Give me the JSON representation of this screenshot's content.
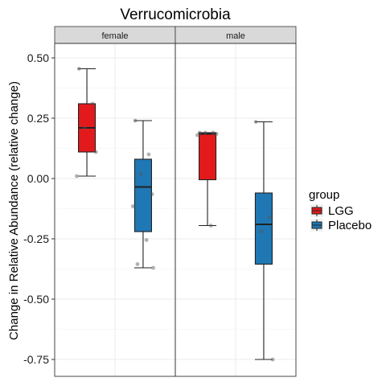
{
  "chart_data": {
    "type": "boxplot",
    "title": "Verrucomicrobia",
    "ylabel": "Change in Relative Abundance (relative change)",
    "xlabel": "",
    "ylim": [
      -0.82,
      0.56
    ],
    "yticks": [
      0.5,
      0.25,
      0.0,
      -0.25,
      -0.5,
      -0.75
    ],
    "ytick_labels": [
      "0.50",
      "0.25",
      "0.00",
      "-0.25",
      "-0.50",
      "-0.75"
    ],
    "grid": true,
    "facets": [
      "female",
      "male"
    ],
    "legend": {
      "title": "group",
      "position": "right",
      "entries": [
        {
          "label": "LGG",
          "color": "#E31A1C"
        },
        {
          "label": "Placebo",
          "color": "#1F78B4"
        }
      ]
    },
    "series": [
      {
        "facet": "female",
        "group": "LGG",
        "color": "#E31A1C",
        "stats": {
          "min": 0.01,
          "q1": 0.11,
          "median": 0.21,
          "q3": 0.31,
          "max": 0.455
        },
        "points": [
          0.455,
          0.31,
          0.21,
          0.11,
          0.01
        ]
      },
      {
        "facet": "female",
        "group": "Placebo",
        "color": "#1F78B4",
        "stats": {
          "min": -0.37,
          "q1": -0.22,
          "median": -0.035,
          "q3": 0.08,
          "max": 0.24
        },
        "points": [
          0.24,
          0.1,
          0.02,
          -0.065,
          -0.115,
          -0.255,
          -0.355,
          -0.37
        ]
      },
      {
        "facet": "male",
        "group": "LGG",
        "color": "#E31A1C",
        "stats": {
          "min": -0.195,
          "q1": -0.005,
          "median": 0.185,
          "q3": 0.19,
          "max": 0.19
        },
        "points": [
          0.19,
          0.19,
          0.19,
          0.185,
          0.18,
          -0.195
        ]
      },
      {
        "facet": "male",
        "group": "Placebo",
        "color": "#1F78B4",
        "stats": {
          "min": -0.75,
          "q1": -0.355,
          "median": -0.19,
          "q3": -0.06,
          "max": 0.235
        },
        "points": [
          0.235,
          -0.16,
          -0.22,
          -0.75
        ]
      }
    ]
  }
}
